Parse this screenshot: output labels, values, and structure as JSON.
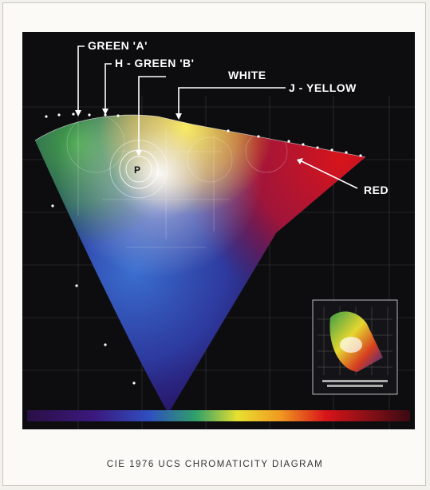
{
  "callouts": {
    "green_a": "GREEN 'A'",
    "h_green_b": "H - GREEN 'B'",
    "white": "WHITE",
    "j_yellow": "J - YELLOW",
    "red": "RED"
  },
  "point_label": "P",
  "caption": {
    "title": "CIE 1976 UCS CHROMATICITY DIAGRAM"
  },
  "colors": {
    "background": "#0d0d0f",
    "annotation": "#ffffff",
    "red": "#d8141a",
    "yellow": "#f4e21e",
    "green": "#47a64a",
    "blue": "#2d3fa8",
    "violet": "#3a1a66"
  }
}
